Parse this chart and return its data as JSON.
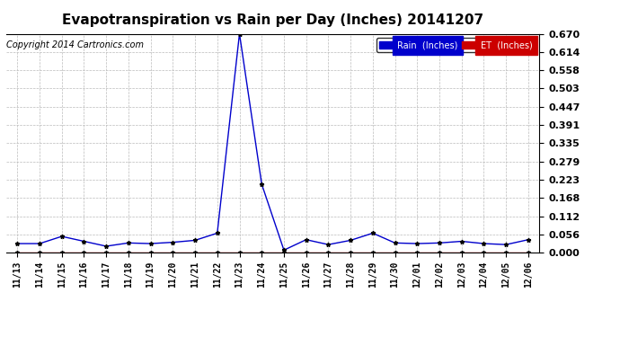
{
  "title": "Evapotranspiration vs Rain per Day (Inches) 20141207",
  "copyright": "Copyright 2014 Cartronics.com",
  "x_labels": [
    "11/13",
    "11/14",
    "11/15",
    "11/16",
    "11/17",
    "11/18",
    "11/19",
    "11/20",
    "11/21",
    "11/22",
    "11/23",
    "11/24",
    "11/25",
    "11/26",
    "11/27",
    "11/28",
    "11/29",
    "11/30",
    "12/01",
    "12/02",
    "12/03",
    "12/04",
    "12/05",
    "12/06"
  ],
  "rain_inches": [
    0.028,
    0.028,
    0.05,
    0.035,
    0.02,
    0.03,
    0.028,
    0.032,
    0.038,
    0.06,
    0.67,
    0.21,
    0.008,
    0.04,
    0.025,
    0.038,
    0.06,
    0.03,
    0.028,
    0.03,
    0.035,
    0.028,
    0.025,
    0.04
  ],
  "et_inches": [
    0.002,
    0.002,
    0.002,
    0.002,
    0.002,
    0.002,
    0.002,
    0.002,
    0.002,
    0.002,
    0.002,
    0.002,
    0.002,
    0.002,
    0.002,
    0.002,
    0.002,
    0.002,
    0.002,
    0.002,
    0.002,
    0.002,
    0.002,
    0.002
  ],
  "rain_color": "#0000cc",
  "et_color": "#cc0000",
  "background_color": "#ffffff",
  "grid_color": "#bbbbbb",
  "ylim": [
    0.0,
    0.67
  ],
  "yticks": [
    0.0,
    0.056,
    0.112,
    0.168,
    0.223,
    0.279,
    0.335,
    0.391,
    0.447,
    0.503,
    0.558,
    0.614,
    0.67
  ],
  "title_fontsize": 11,
  "copyright_fontsize": 7,
  "legend_rain_label": "Rain  (Inches)",
  "legend_et_label": "ET  (Inches)",
  "legend_rain_bg": "#0000cc",
  "legend_et_bg": "#cc0000"
}
